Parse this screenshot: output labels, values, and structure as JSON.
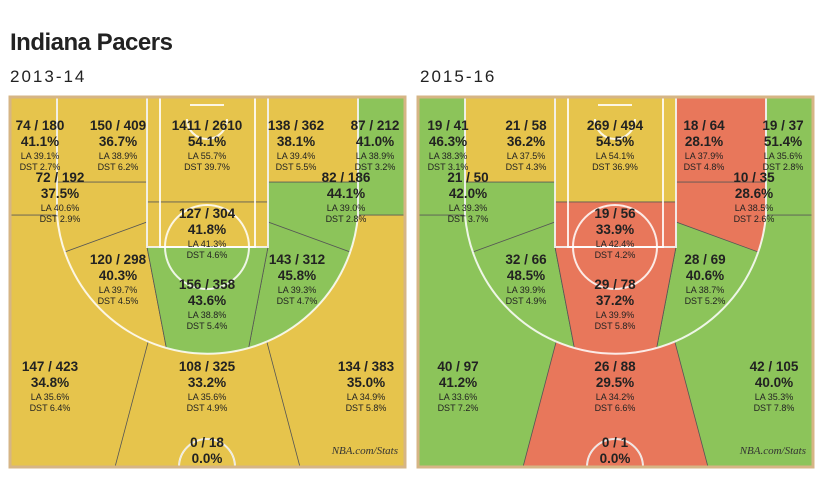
{
  "header": {
    "title": "Indiana Pacers"
  },
  "source": "NBA.com/Stats",
  "panels": [
    {
      "label": "2013-14",
      "zones": [
        {
          "shots": "74 / 180",
          "pct": "41.1%",
          "la": "LA 39.1%",
          "dst": "DST 2.7%",
          "color": "#e6c44c"
        },
        {
          "shots": "150 / 409",
          "pct": "36.7%",
          "la": "LA 38.9%",
          "dst": "DST 6.2%",
          "color": "#e6c44c"
        },
        {
          "shots": "1411 / 2610",
          "pct": "54.1%",
          "la": "LA 55.7%",
          "dst": "DST 39.7%",
          "color": "#e6c44c"
        },
        {
          "shots": "138 / 362",
          "pct": "38.1%",
          "la": "LA 39.4%",
          "dst": "DST 5.5%",
          "color": "#e6c44c"
        },
        {
          "shots": "87 / 212",
          "pct": "41.0%",
          "la": "LA 38.9%",
          "dst": "DST 3.2%",
          "color": "#8cc45a"
        },
        {
          "shots": "72 / 192",
          "pct": "37.5%",
          "la": "LA 40.6%",
          "dst": "DST 2.9%",
          "color": "#e6c44c"
        },
        {
          "shots": "82 / 186",
          "pct": "44.1%",
          "la": "LA 39.0%",
          "dst": "DST 2.8%",
          "color": "#8cc45a"
        },
        {
          "shots": "127 / 304",
          "pct": "41.8%",
          "la": "LA 41.3%",
          "dst": "DST 4.6%",
          "color": "#e6c44c"
        },
        {
          "shots": "120 / 298",
          "pct": "40.3%",
          "la": "LA 39.7%",
          "dst": "DST 4.5%",
          "color": "#e6c44c"
        },
        {
          "shots": "143 / 312",
          "pct": "45.8%",
          "la": "LA 39.3%",
          "dst": "DST 4.7%",
          "color": "#8cc45a"
        },
        {
          "shots": "156 / 358",
          "pct": "43.6%",
          "la": "LA 38.8%",
          "dst": "DST 5.4%",
          "color": "#8cc45a"
        },
        {
          "shots": "147 / 423",
          "pct": "34.8%",
          "la": "LA 35.6%",
          "dst": "DST 6.4%",
          "color": "#e6c44c"
        },
        {
          "shots": "108 / 325",
          "pct": "33.2%",
          "la": "LA 35.6%",
          "dst": "DST 4.9%",
          "color": "#e6c44c"
        },
        {
          "shots": "134 / 383",
          "pct": "35.0%",
          "la": "LA 34.9%",
          "dst": "DST 5.8%",
          "color": "#e6c44c"
        },
        {
          "shots": "0 / 18",
          "pct": "0.0%",
          "color": "#e6c44c"
        }
      ]
    },
    {
      "label": "2015-16",
      "zones": [
        {
          "shots": "19 / 41",
          "pct": "46.3%",
          "la": "LA 38.3%",
          "dst": "DST 3.1%",
          "color": "#8cc45a"
        },
        {
          "shots": "21 / 58",
          "pct": "36.2%",
          "la": "LA 37.5%",
          "dst": "DST 4.3%",
          "color": "#e6c44c"
        },
        {
          "shots": "269 / 494",
          "pct": "54.5%",
          "la": "LA 54.1%",
          "dst": "DST 36.9%",
          "color": "#e6c44c"
        },
        {
          "shots": "18 / 64",
          "pct": "28.1%",
          "la": "LA 37.9%",
          "dst": "DST 4.8%",
          "color": "#e8775b"
        },
        {
          "shots": "19 / 37",
          "pct": "51.4%",
          "la": "LA 35.6%",
          "dst": "DST 2.8%",
          "color": "#8cc45a"
        },
        {
          "shots": "21 / 50",
          "pct": "42.0%",
          "la": "LA 39.3%",
          "dst": "DST 3.7%",
          "color": "#8cc45a"
        },
        {
          "shots": "10 / 35",
          "pct": "28.6%",
          "la": "LA 38.5%",
          "dst": "DST 2.6%",
          "color": "#e8775b"
        },
        {
          "shots": "19 / 56",
          "pct": "33.9%",
          "la": "LA 42.4%",
          "dst": "DST 4.2%",
          "color": "#e8775b"
        },
        {
          "shots": "32 / 66",
          "pct": "48.5%",
          "la": "LA 39.9%",
          "dst": "DST 4.9%",
          "color": "#8cc45a"
        },
        {
          "shots": "28 / 69",
          "pct": "40.6%",
          "la": "LA 38.7%",
          "dst": "DST 5.2%",
          "color": "#8cc45a"
        },
        {
          "shots": "29 / 78",
          "pct": "37.2%",
          "la": "LA 39.9%",
          "dst": "DST 5.8%",
          "color": "#e8775b"
        },
        {
          "shots": "40 / 97",
          "pct": "41.2%",
          "la": "LA 33.6%",
          "dst": "DST 7.2%",
          "color": "#8cc45a"
        },
        {
          "shots": "26 / 88",
          "pct": "29.5%",
          "la": "LA 34.2%",
          "dst": "DST 6.6%",
          "color": "#e8775b"
        },
        {
          "shots": "42 / 105",
          "pct": "40.0%",
          "la": "LA 35.3%",
          "dst": "DST 7.8%",
          "color": "#8cc45a"
        },
        {
          "shots": "0 / 1",
          "pct": "0.0%",
          "color": "#e8775b"
        }
      ]
    }
  ]
}
